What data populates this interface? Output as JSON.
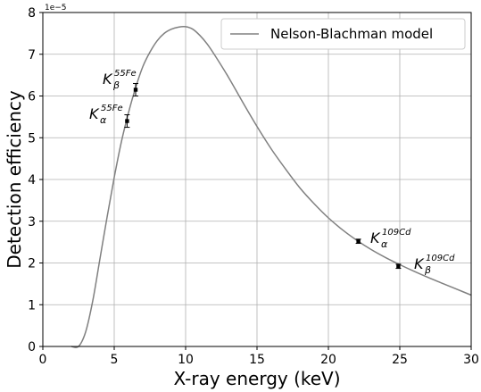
{
  "chart_data": {
    "type": "line",
    "xlabel": "X-ray energy (keV)",
    "ylabel": "Detection efficiency",
    "xlim": [
      0,
      30
    ],
    "ylim": [
      0,
      8
    ],
    "y_scale_exponent": "1e−5",
    "x_ticks": [
      "0",
      "5",
      "10",
      "15",
      "20",
      "25",
      "30"
    ],
    "y_ticks": [
      "0",
      "1",
      "2",
      "3",
      "4",
      "5",
      "6",
      "7",
      "8"
    ],
    "grid": true,
    "legend_position": "top-right",
    "series": [
      {
        "name": "Nelson-Blachman model",
        "color": "#808080",
        "x": [
          2.0,
          2.5,
          3.0,
          3.5,
          4.0,
          4.5,
          5.0,
          5.5,
          6.0,
          6.5,
          7.0,
          7.5,
          8.0,
          8.5,
          9.0,
          9.5,
          10.0,
          10.5,
          11.0,
          11.5,
          12.0,
          13.0,
          14.0,
          15.0,
          16.0,
          17.0,
          18.0,
          19.0,
          20.0,
          21.0,
          22.0,
          23.0,
          24.0,
          25.0,
          26.0,
          27.0,
          28.0,
          29.0,
          30.0
        ],
        "y": [
          0.0,
          0.0,
          0.35,
          1.1,
          2.1,
          3.1,
          4.05,
          4.9,
          5.6,
          6.2,
          6.7,
          7.05,
          7.32,
          7.5,
          7.6,
          7.65,
          7.66,
          7.6,
          7.45,
          7.25,
          7.0,
          6.45,
          5.85,
          5.27,
          4.73,
          4.25,
          3.8,
          3.42,
          3.08,
          2.79,
          2.54,
          2.32,
          2.13,
          1.96,
          1.8,
          1.65,
          1.51,
          1.37,
          1.23
        ]
      }
    ],
    "points": [
      {
        "x": 5.9,
        "y": 5.4,
        "err": 0.15,
        "label_main": "K",
        "label_sub": "α",
        "label_sup": "55Fe"
      },
      {
        "x": 6.5,
        "y": 6.15,
        "err": 0.15,
        "label_main": "K",
        "label_sub": "β",
        "label_sup": "55Fe"
      },
      {
        "x": 22.1,
        "y": 2.52,
        "err": 0.05,
        "label_main": "K",
        "label_sub": "α",
        "label_sup": "109Cd"
      },
      {
        "x": 24.9,
        "y": 1.92,
        "err": 0.05,
        "label_main": "K",
        "label_sub": "β",
        "label_sup": "109Cd"
      }
    ]
  }
}
